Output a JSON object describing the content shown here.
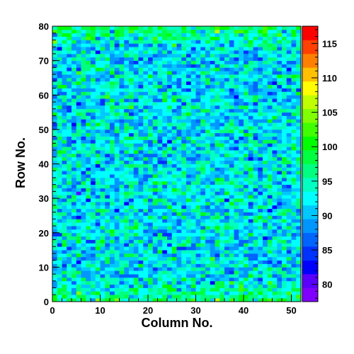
{
  "chart_data": {
    "type": "heatmap",
    "title": "",
    "xlabel": "Column No.",
    "ylabel": "Row No.",
    "columns": 52,
    "rows": 80,
    "xlim": [
      0,
      52
    ],
    "ylim": [
      0,
      80
    ],
    "x_ticks": [
      0,
      10,
      20,
      30,
      40,
      50
    ],
    "y_ticks": [
      0,
      10,
      20,
      30,
      40,
      50,
      60,
      70,
      80
    ],
    "zlim": [
      77.5,
      117.5
    ],
    "colorbar_ticks": [
      80,
      85,
      90,
      95,
      100,
      105,
      110,
      115
    ],
    "colorbar_levels": 20,
    "colorbar_palette": [
      "#7f00ff",
      "#5a00ff",
      "#0000ff",
      "#0032ff",
      "#0064ff",
      "#0096ff",
      "#00c8ff",
      "#00ffff",
      "#00ffc0",
      "#00ff80",
      "#00ff40",
      "#00ff00",
      "#40ff00",
      "#80ff00",
      "#c0ff00",
      "#ffff00",
      "#ffc000",
      "#ff8000",
      "#ff4000",
      "#ff0000"
    ],
    "value_model": {
      "description": "per-cell values; mean near 92 over most of the grid, rising toward ~97 at the top and bottom edge rows, spread about ±5",
      "center_mean": 92,
      "edge_mean": 97,
      "spread": 5
    }
  }
}
